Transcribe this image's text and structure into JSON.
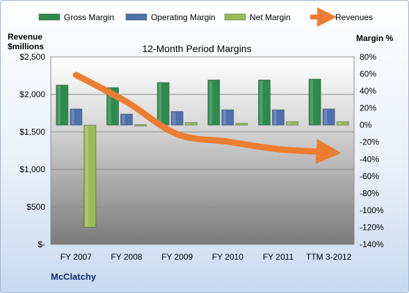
{
  "chart_data": {
    "type": "bar",
    "title": "12-Month Period Margins",
    "categories": [
      "FY 2007",
      "FY 2008",
      "FY 2009",
      "FY 2010",
      "FY 2011",
      "TTM 3-2012"
    ],
    "left_axis": {
      "title_line1": "Revenue",
      "title_line2": "$millions",
      "range": [
        0,
        2500
      ],
      "ticks": [
        0,
        500,
        1000,
        1500,
        2000,
        2500
      ],
      "tick_labels": [
        "$-",
        "$500",
        "$1,000",
        "$1,500",
        "$2,000",
        "$2,500"
      ]
    },
    "right_axis": {
      "title": "Margin %",
      "range": [
        -140,
        80
      ],
      "ticks": [
        80,
        60,
        40,
        20,
        0,
        -20,
        -40,
        -60,
        -80,
        -100,
        -120,
        -140
      ],
      "tick_labels": [
        "80%",
        "60%",
        "40%",
        "20%",
        "0%",
        "-20%",
        "-40%",
        "-60%",
        "-80%",
        "-100%",
        "-120%",
        "-140%"
      ]
    },
    "series": [
      {
        "name": "Gross Margin",
        "type": "bar",
        "axis": "right",
        "color": "#2e8b4e",
        "values": [
          47,
          44,
          50,
          53,
          53,
          54
        ]
      },
      {
        "name": "Operating Margin",
        "type": "bar",
        "axis": "right",
        "color": "#4f6fae",
        "values": [
          19,
          13,
          16,
          18,
          18,
          19
        ]
      },
      {
        "name": "Net Margin",
        "type": "bar",
        "axis": "right",
        "color": "#9bbb59",
        "values": [
          -120,
          0.5,
          3,
          2,
          4,
          4
        ]
      },
      {
        "name": "Revenues",
        "type": "line",
        "axis": "left",
        "color": "#ed7d31",
        "values": [
          2260,
          1900,
          1470,
          1370,
          1270,
          1230
        ]
      }
    ],
    "grid": true,
    "legend_position": "top",
    "footer": "McClatchy"
  }
}
